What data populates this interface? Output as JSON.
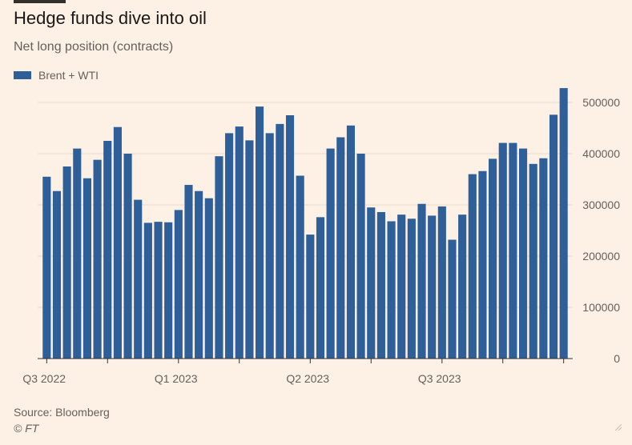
{
  "header": {
    "title": "Hedge funds dive into oil",
    "subtitle": "Net long position (contracts)"
  },
  "footer": {
    "source": "Source: Bloomberg",
    "copyright": "© FT"
  },
  "colors": {
    "background": "#fdf1e5",
    "bar": "#2f5f98",
    "gridline": "#e9dccd",
    "axis": "#33302e",
    "text": "#66605c"
  },
  "chart_data": {
    "type": "bar",
    "series": [
      {
        "name": "Brent + WTI",
        "values": [
          355000,
          327000,
          375000,
          410000,
          352000,
          388000,
          425000,
          452000,
          400000,
          310000,
          265000,
          267000,
          266000,
          290000,
          339000,
          327000,
          313000,
          395000,
          440000,
          453000,
          426000,
          492000,
          440000,
          458000,
          475000,
          357000,
          242000,
          276000,
          410000,
          432000,
          455000,
          400000,
          295000,
          286000,
          268000,
          281000,
          273000,
          302000,
          279000,
          297000,
          232000,
          281000,
          360000,
          366000,
          390000,
          421000,
          421000,
          410000,
          380000,
          391000,
          476000,
          528000
        ]
      }
    ],
    "x_tick_labels": [
      {
        "label": "Q3 2022",
        "bar_index": 0
      },
      {
        "label": "Q1 2023",
        "bar_index": 13
      },
      {
        "label": "Q2 2023",
        "bar_index": 26
      },
      {
        "label": "Q3 2023",
        "bar_index": 39
      }
    ],
    "x_minor_tick_bar_indices": [
      6,
      19,
      32,
      45,
      51
    ],
    "y_ticks": [
      0,
      100000,
      200000,
      300000,
      400000,
      500000
    ],
    "y_tick_labels": [
      "0",
      "100000",
      "200000",
      "300000",
      "400000",
      "500000"
    ],
    "ylim": [
      0,
      530000
    ],
    "y_axis_side": "right",
    "grid": true,
    "legend_position": "top-left"
  }
}
